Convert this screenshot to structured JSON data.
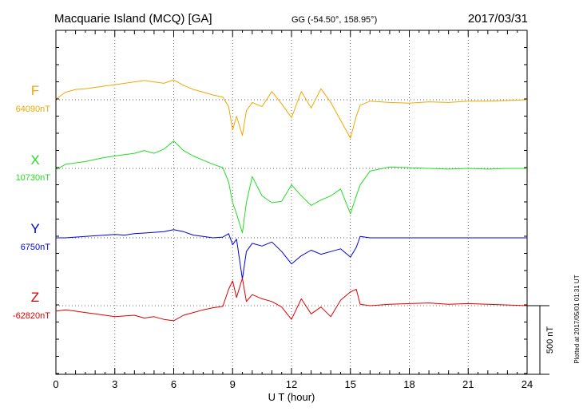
{
  "chart_data": {
    "type": "line",
    "title": "Macquarie Island (MCQ)  [GA]",
    "coords": "GG (-54.50°, 158.95°)",
    "date": "2017/03/31",
    "xlabel": "U T (hour)",
    "xlim": [
      0,
      24
    ],
    "xticks": [
      0,
      3,
      6,
      9,
      12,
      15,
      18,
      21,
      24
    ],
    "xticks_labels": [
      "0",
      "3",
      "6",
      "9",
      "12",
      "15",
      "18",
      "21",
      "24"
    ],
    "grid": true,
    "scale_bar": {
      "label": "500 nT",
      "value": 500
    },
    "plotted": "Plotted at 2017/05/01 01:31  UT",
    "series": [
      {
        "name": "F",
        "baseline_label": "64090nT",
        "baseline": 64090,
        "color": "#f0a800",
        "x": [
          0,
          0.5,
          1,
          1.5,
          2,
          2.5,
          3,
          3.5,
          4,
          4.5,
          5,
          5.5,
          6,
          6.5,
          7,
          7.5,
          8,
          8.5,
          8.8,
          9,
          9.2,
          9.5,
          9.7,
          10,
          10.5,
          11,
          11.5,
          12,
          12.5,
          13,
          13.5,
          14,
          14.5,
          15,
          15.3,
          15.5,
          16,
          17,
          18,
          19,
          20,
          21,
          22,
          23,
          24
        ],
        "y": [
          5,
          55,
          75,
          80,
          90,
          100,
          110,
          120,
          130,
          140,
          130,
          120,
          145,
          105,
          75,
          55,
          35,
          20,
          -50,
          -220,
          -120,
          -260,
          -80,
          -20,
          -50,
          60,
          -30,
          -130,
          60,
          -60,
          80,
          -20,
          -150,
          -280,
          -120,
          -40,
          -10,
          -20,
          -25,
          -15,
          -20,
          -10,
          -10,
          -5,
          0
        ]
      },
      {
        "name": "X",
        "baseline_label": "10730nT",
        "baseline": 10730,
        "color": "#22dd22",
        "x": [
          0,
          0.5,
          1,
          1.5,
          2,
          2.5,
          3,
          3.5,
          4,
          4.5,
          5,
          5.5,
          6,
          6.5,
          7,
          7.5,
          8,
          8.5,
          8.8,
          9,
          9.2,
          9.5,
          9.7,
          10,
          10.5,
          11,
          11.5,
          12,
          12.5,
          13,
          13.5,
          14,
          14.5,
          15,
          15.3,
          15.5,
          16,
          17,
          18,
          19,
          20,
          21,
          22,
          23,
          24
        ],
        "y": [
          -10,
          30,
          40,
          50,
          65,
          80,
          90,
          100,
          110,
          130,
          110,
          140,
          200,
          130,
          90,
          60,
          30,
          5,
          -100,
          -250,
          -330,
          -470,
          -250,
          -60,
          -200,
          -250,
          -240,
          -120,
          -200,
          -270,
          -230,
          -200,
          -150,
          -330,
          -200,
          -120,
          -20,
          10,
          5,
          0,
          -5,
          0,
          -5,
          0,
          0
        ]
      },
      {
        "name": "Y",
        "baseline_label": "6750nT",
        "baseline": 6750,
        "color": "#0000dd",
        "x": [
          0,
          0.5,
          1,
          1.5,
          2,
          2.5,
          3,
          3.5,
          4,
          4.5,
          5,
          5.5,
          6,
          6.5,
          7,
          7.5,
          8,
          8.5,
          8.8,
          9,
          9.2,
          9.5,
          9.7,
          10,
          10.5,
          11,
          11.5,
          12,
          12.5,
          13,
          13.5,
          14,
          14.5,
          15,
          15.3,
          15.5,
          16,
          17,
          18,
          19,
          20,
          21,
          22,
          23,
          24
        ],
        "y": [
          0,
          0,
          5,
          10,
          15,
          20,
          25,
          20,
          30,
          35,
          40,
          45,
          60,
          45,
          20,
          10,
          0,
          5,
          30,
          -50,
          -10,
          -300,
          -100,
          -40,
          -60,
          -30,
          -100,
          -190,
          -130,
          -90,
          -120,
          -100,
          -80,
          -140,
          -70,
          10,
          0,
          0,
          0,
          0,
          0,
          0,
          0,
          0,
          0
        ]
      },
      {
        "name": "Z",
        "baseline_label": "-62820nT",
        "baseline": -62820,
        "color": "#dd0000",
        "x": [
          0,
          0.5,
          1,
          1.5,
          2,
          2.5,
          3,
          3.5,
          4,
          4.5,
          5,
          5.5,
          6,
          6.5,
          7,
          7.5,
          8,
          8.5,
          8.8,
          9,
          9.2,
          9.5,
          9.7,
          10,
          10.5,
          11,
          11.5,
          12,
          12.5,
          13,
          13.5,
          14,
          14.5,
          15,
          15.3,
          15.5,
          16,
          17,
          18,
          19,
          20,
          21,
          22,
          23,
          24
        ],
        "y": [
          -40,
          -30,
          -40,
          -50,
          -60,
          -70,
          -80,
          -75,
          -70,
          -90,
          -80,
          -100,
          -110,
          -70,
          -50,
          -30,
          -15,
          -5,
          120,
          180,
          60,
          200,
          30,
          80,
          50,
          30,
          -10,
          -100,
          50,
          -60,
          -10,
          -80,
          40,
          100,
          120,
          10,
          0,
          10,
          15,
          20,
          10,
          15,
          10,
          5,
          0
        ]
      }
    ]
  }
}
